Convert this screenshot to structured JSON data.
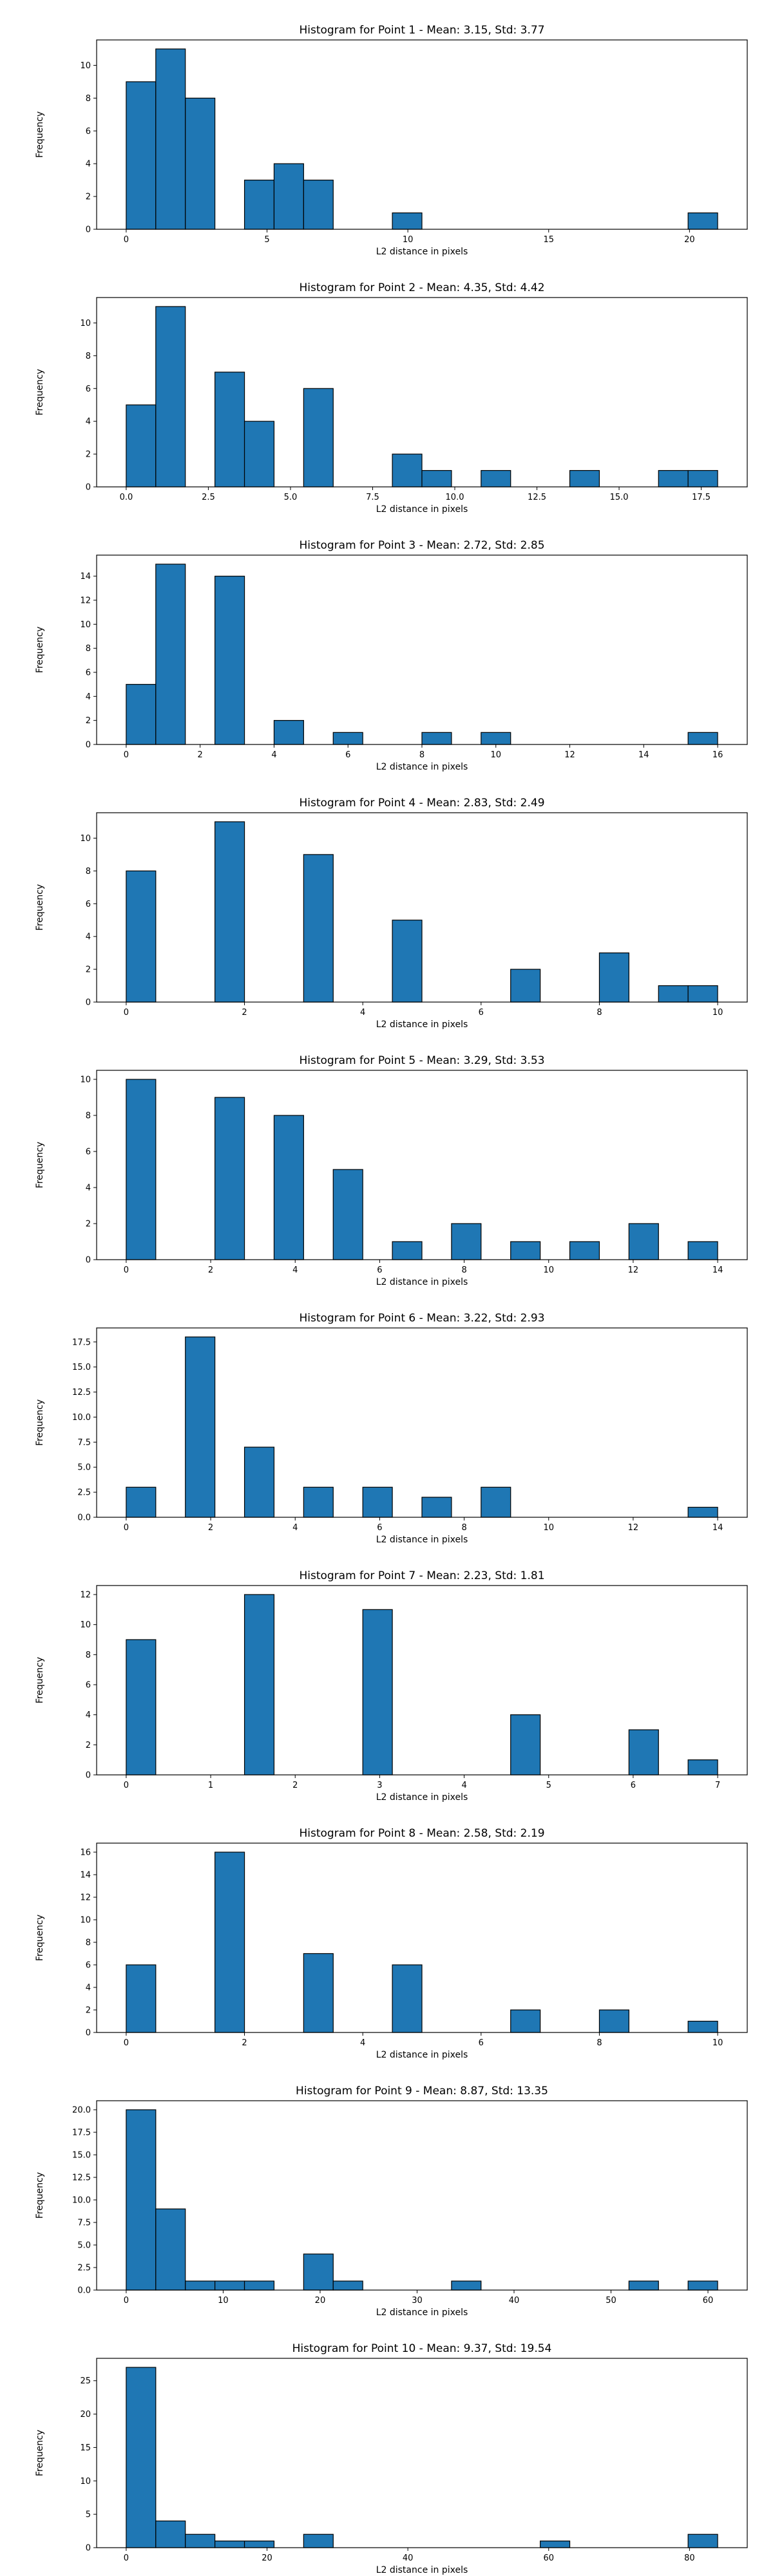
{
  "colors": {
    "bar_fill": "#1f77b4",
    "bar_edge": "#000000",
    "axes": "#000000"
  },
  "chart_data": [
    {
      "type": "bar",
      "title": "Histogram for Point 1 - Mean: 3.15, Std: 3.77",
      "xlabel": "L2 distance in pixels",
      "ylabel": "Frequency",
      "xlim": [
        -1.05,
        22.05
      ],
      "ylim": [
        0,
        11.55
      ],
      "xticks": [
        0,
        5,
        10,
        15,
        20
      ],
      "xtick_labels": [
        "0",
        "5",
        "10",
        "15",
        "20"
      ],
      "yticks": [
        0,
        2,
        4,
        6,
        8,
        10
      ],
      "ytick_labels": [
        "0",
        "2",
        "4",
        "6",
        "8",
        "10"
      ],
      "bin_start": 0,
      "bin_width": 1.05,
      "values": [
        9,
        11,
        8,
        0,
        3,
        4,
        3,
        0,
        0,
        1,
        0,
        0,
        0,
        0,
        0,
        0,
        0,
        0,
        0,
        1
      ],
      "grid": false,
      "legend": "none"
    },
    {
      "type": "bar",
      "title": "Histogram for Point 2 - Mean: 4.35, Std: 4.42",
      "xlabel": "L2 distance in pixels",
      "ylabel": "Frequency",
      "xlim": [
        -0.9,
        18.9
      ],
      "ylim": [
        0,
        11.55
      ],
      "xticks": [
        0,
        2.5,
        5,
        7.5,
        10,
        12.5,
        15,
        17.5
      ],
      "xtick_labels": [
        "0.0",
        "2.5",
        "5.0",
        "7.5",
        "10.0",
        "12.5",
        "15.0",
        "17.5"
      ],
      "yticks": [
        0,
        2,
        4,
        6,
        8,
        10
      ],
      "ytick_labels": [
        "0",
        "2",
        "4",
        "6",
        "8",
        "10"
      ],
      "bin_start": 0,
      "bin_width": 0.9,
      "values": [
        5,
        11,
        0,
        7,
        4,
        0,
        6,
        0,
        0,
        2,
        1,
        0,
        1,
        0,
        0,
        1,
        0,
        0,
        1,
        1
      ],
      "grid": false,
      "legend": "none"
    },
    {
      "type": "bar",
      "title": "Histogram for Point 3 - Mean: 2.72, Std: 2.85",
      "xlabel": "L2 distance in pixels",
      "ylabel": "Frequency",
      "xlim": [
        -0.8,
        16.8
      ],
      "ylim": [
        0,
        15.75
      ],
      "xticks": [
        0,
        2,
        4,
        6,
        8,
        10,
        12,
        14,
        16
      ],
      "xtick_labels": [
        "0",
        "2",
        "4",
        "6",
        "8",
        "10",
        "12",
        "14",
        "16"
      ],
      "yticks": [
        0,
        2,
        4,
        6,
        8,
        10,
        12,
        14
      ],
      "ytick_labels": [
        "0",
        "2",
        "4",
        "6",
        "8",
        "10",
        "12",
        "14"
      ],
      "bin_start": 0,
      "bin_width": 0.8,
      "values": [
        5,
        15,
        0,
        14,
        0,
        2,
        0,
        1,
        0,
        0,
        1,
        0,
        1,
        0,
        0,
        0,
        0,
        0,
        0,
        1
      ],
      "grid": false,
      "legend": "none"
    },
    {
      "type": "bar",
      "title": "Histogram for Point 4 - Mean: 2.83, Std: 2.49",
      "xlabel": "L2 distance in pixels",
      "ylabel": "Frequency",
      "xlim": [
        -0.5,
        10.5
      ],
      "ylim": [
        0,
        11.55
      ],
      "xticks": [
        0,
        2,
        4,
        6,
        8,
        10
      ],
      "xtick_labels": [
        "0",
        "2",
        "4",
        "6",
        "8",
        "10"
      ],
      "yticks": [
        0,
        2,
        4,
        6,
        8,
        10
      ],
      "ytick_labels": [
        "0",
        "2",
        "4",
        "6",
        "8",
        "10"
      ],
      "bin_start": 0,
      "bin_width": 0.5,
      "values": [
        8,
        0,
        0,
        11,
        0,
        0,
        9,
        0,
        0,
        5,
        0,
        0,
        0,
        2,
        0,
        0,
        3,
        0,
        1,
        1
      ],
      "grid": false,
      "legend": "none"
    },
    {
      "type": "bar",
      "title": "Histogram for Point 5 - Mean: 3.29, Std: 3.53",
      "xlabel": "L2 distance in pixels",
      "ylabel": "Frequency",
      "xlim": [
        -0.7,
        14.7
      ],
      "ylim": [
        0,
        10.5
      ],
      "xticks": [
        0,
        2,
        4,
        6,
        8,
        10,
        12,
        14
      ],
      "xtick_labels": [
        "0",
        "2",
        "4",
        "6",
        "8",
        "10",
        "12",
        "14"
      ],
      "yticks": [
        0,
        2,
        4,
        6,
        8,
        10
      ],
      "ytick_labels": [
        "0",
        "2",
        "4",
        "6",
        "8",
        "10"
      ],
      "bin_start": 0,
      "bin_width": 0.7,
      "values": [
        10,
        0,
        0,
        9,
        0,
        8,
        0,
        5,
        0,
        1,
        0,
        2,
        0,
        1,
        0,
        1,
        0,
        2,
        0,
        1
      ],
      "grid": false,
      "legend": "none"
    },
    {
      "type": "bar",
      "title": "Histogram for Point 6 - Mean: 3.22, Std: 2.93",
      "xlabel": "L2 distance in pixels",
      "ylabel": "Frequency",
      "xlim": [
        -0.7,
        14.7
      ],
      "ylim": [
        0,
        18.9
      ],
      "xticks": [
        0,
        2,
        4,
        6,
        8,
        10,
        12,
        14
      ],
      "xtick_labels": [
        "0",
        "2",
        "4",
        "6",
        "8",
        "10",
        "12",
        "14"
      ],
      "yticks": [
        0,
        2.5,
        5,
        7.5,
        10,
        12.5,
        15,
        17.5
      ],
      "ytick_labels": [
        "0.0",
        "2.5",
        "5.0",
        "7.5",
        "10.0",
        "12.5",
        "15.0",
        "17.5"
      ],
      "bin_start": 0,
      "bin_width": 0.7,
      "values": [
        3,
        0,
        18,
        0,
        7,
        0,
        3,
        0,
        3,
        0,
        2,
        0,
        3,
        0,
        0,
        0,
        0,
        0,
        0,
        1
      ],
      "grid": false,
      "legend": "none"
    },
    {
      "type": "bar",
      "title": "Histogram for Point 7 - Mean: 2.23, Std: 1.81",
      "xlabel": "L2 distance in pixels",
      "ylabel": "Frequency",
      "xlim": [
        -0.35,
        7.35
      ],
      "ylim": [
        0,
        12.6
      ],
      "xticks": [
        0,
        1,
        2,
        3,
        4,
        5,
        6,
        7
      ],
      "xtick_labels": [
        "0",
        "1",
        "2",
        "3",
        "4",
        "5",
        "6",
        "7"
      ],
      "yticks": [
        0,
        2,
        4,
        6,
        8,
        10,
        12
      ],
      "ytick_labels": [
        "0",
        "2",
        "4",
        "6",
        "8",
        "10",
        "12"
      ],
      "bin_start": 0,
      "bin_width": 0.35,
      "values": [
        9,
        0,
        0,
        0,
        12,
        0,
        0,
        0,
        11,
        0,
        0,
        0,
        0,
        4,
        0,
        0,
        0,
        3,
        0,
        1
      ],
      "grid": false,
      "legend": "none"
    },
    {
      "type": "bar",
      "title": "Histogram for Point 8 - Mean: 2.58, Std: 2.19",
      "xlabel": "L2 distance in pixels",
      "ylabel": "Frequency",
      "xlim": [
        -0.5,
        10.5
      ],
      "ylim": [
        0,
        16.8
      ],
      "xticks": [
        0,
        2,
        4,
        6,
        8,
        10
      ],
      "xtick_labels": [
        "0",
        "2",
        "4",
        "6",
        "8",
        "10"
      ],
      "yticks": [
        0,
        2,
        4,
        6,
        8,
        10,
        12,
        14,
        16
      ],
      "ytick_labels": [
        "0",
        "2",
        "4",
        "6",
        "8",
        "10",
        "12",
        "14",
        "16"
      ],
      "bin_start": 0,
      "bin_width": 0.5,
      "values": [
        6,
        0,
        0,
        16,
        0,
        0,
        7,
        0,
        0,
        6,
        0,
        0,
        0,
        2,
        0,
        0,
        2,
        0,
        0,
        1
      ],
      "grid": false,
      "legend": "none"
    },
    {
      "type": "bar",
      "title": "Histogram for Point 9 - Mean: 8.87, Std: 13.35",
      "xlabel": "L2 distance in pixels",
      "ylabel": "Frequency",
      "xlim": [
        -3.05,
        64.05
      ],
      "ylim": [
        0,
        21
      ],
      "xticks": [
        0,
        10,
        20,
        30,
        40,
        50,
        60
      ],
      "xtick_labels": [
        "0",
        "10",
        "20",
        "30",
        "40",
        "50",
        "60"
      ],
      "yticks": [
        0,
        2.5,
        5,
        7.5,
        10,
        12.5,
        15,
        17.5,
        20
      ],
      "ytick_labels": [
        "0.0",
        "2.5",
        "5.0",
        "7.5",
        "10.0",
        "12.5",
        "15.0",
        "17.5",
        "20.0"
      ],
      "bin_start": 0,
      "bin_width": 3.05,
      "values": [
        20,
        9,
        1,
        1,
        1,
        0,
        4,
        1,
        0,
        0,
        0,
        1,
        0,
        0,
        0,
        0,
        0,
        1,
        0,
        1
      ],
      "grid": false,
      "legend": "none"
    },
    {
      "type": "bar",
      "title": "Histogram for Point 10 - Mean: 9.37, Std: 19.54",
      "xlabel": "L2 distance in pixels",
      "ylabel": "Frequency",
      "xlim": [
        -4.2,
        88.2
      ],
      "ylim": [
        0,
        28.35
      ],
      "xticks": [
        0,
        20,
        40,
        60,
        80
      ],
      "xtick_labels": [
        "0",
        "20",
        "40",
        "60",
        "80"
      ],
      "yticks": [
        0,
        5,
        10,
        15,
        20,
        25
      ],
      "ytick_labels": [
        "0",
        "5",
        "10",
        "15",
        "20",
        "25"
      ],
      "bin_start": 0,
      "bin_width": 4.2,
      "values": [
        27,
        4,
        2,
        1,
        1,
        0,
        2,
        0,
        0,
        0,
        0,
        0,
        0,
        0,
        1,
        0,
        0,
        0,
        0,
        2
      ],
      "grid": false,
      "legend": "none"
    }
  ]
}
